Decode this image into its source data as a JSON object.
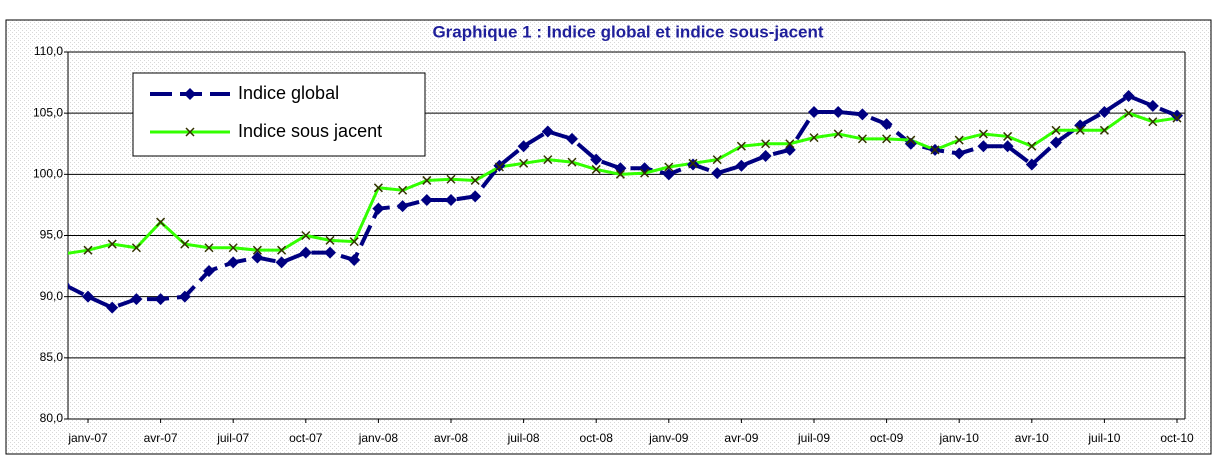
{
  "chart_data": {
    "type": "line",
    "title": "Graphique 1 : Indice global et indice sous-jacent",
    "categories": [
      null,
      "janv-07",
      null,
      null,
      "avr-07",
      null,
      null,
      "juil-07",
      null,
      null,
      "oct-07",
      null,
      null,
      "janv-08",
      null,
      null,
      "avr-08",
      null,
      null,
      "juil-08",
      null,
      null,
      "oct-08",
      null,
      null,
      "janv-09",
      null,
      null,
      "avr-09",
      null,
      null,
      "juil-09",
      null,
      null,
      "oct-09",
      null,
      null,
      "janv-10",
      null,
      null,
      "avr-10",
      null,
      null,
      "juil-10",
      null,
      null,
      "oct-10"
    ],
    "series": [
      {
        "name": "Indice global",
        "color": "#000080",
        "values": [
          91.0,
          90.0,
          89.1,
          89.8,
          89.8,
          90.0,
          92.1,
          92.8,
          93.2,
          92.8,
          93.6,
          93.6,
          93.0,
          97.2,
          97.4,
          97.9,
          97.9,
          98.2,
          100.7,
          102.3,
          103.5,
          102.9,
          101.2,
          100.5,
          100.5,
          100.0,
          100.8,
          100.1,
          100.7,
          101.5,
          102.0,
          105.1,
          105.1,
          104.9,
          104.1,
          102.5,
          102.0,
          101.7,
          102.3,
          102.3,
          100.8,
          102.6,
          104.0,
          105.1,
          106.4,
          105.6,
          104.8
        ]
      },
      {
        "name": "Indice sous jacent",
        "color": "#33ff00",
        "values": [
          93.5,
          93.8,
          94.3,
          94.0,
          96.1,
          94.3,
          94.0,
          94.0,
          93.8,
          93.8,
          95.0,
          94.6,
          94.5,
          98.9,
          98.7,
          99.5,
          99.6,
          99.5,
          100.6,
          100.9,
          101.2,
          101.0,
          100.4,
          100.0,
          100.1,
          100.6,
          100.9,
          101.2,
          102.3,
          102.5,
          102.5,
          103.0,
          103.3,
          102.9,
          102.9,
          102.8,
          102.0,
          102.8,
          103.3,
          103.1,
          102.3,
          103.6,
          103.6,
          103.6,
          105.0,
          104.3,
          104.6
        ]
      }
    ],
    "ylim": [
      80,
      110
    ],
    "yticks": [
      {
        "value": 80,
        "label": "80,0"
      },
      {
        "value": 85,
        "label": "85,0"
      },
      {
        "value": 90,
        "label": "90,0"
      },
      {
        "value": 95,
        "label": "95,0"
      },
      {
        "value": 100,
        "label": "100,0"
      },
      {
        "value": 105,
        "label": "105,0"
      },
      {
        "value": 110,
        "label": "110,0"
      }
    ],
    "grid": true
  }
}
